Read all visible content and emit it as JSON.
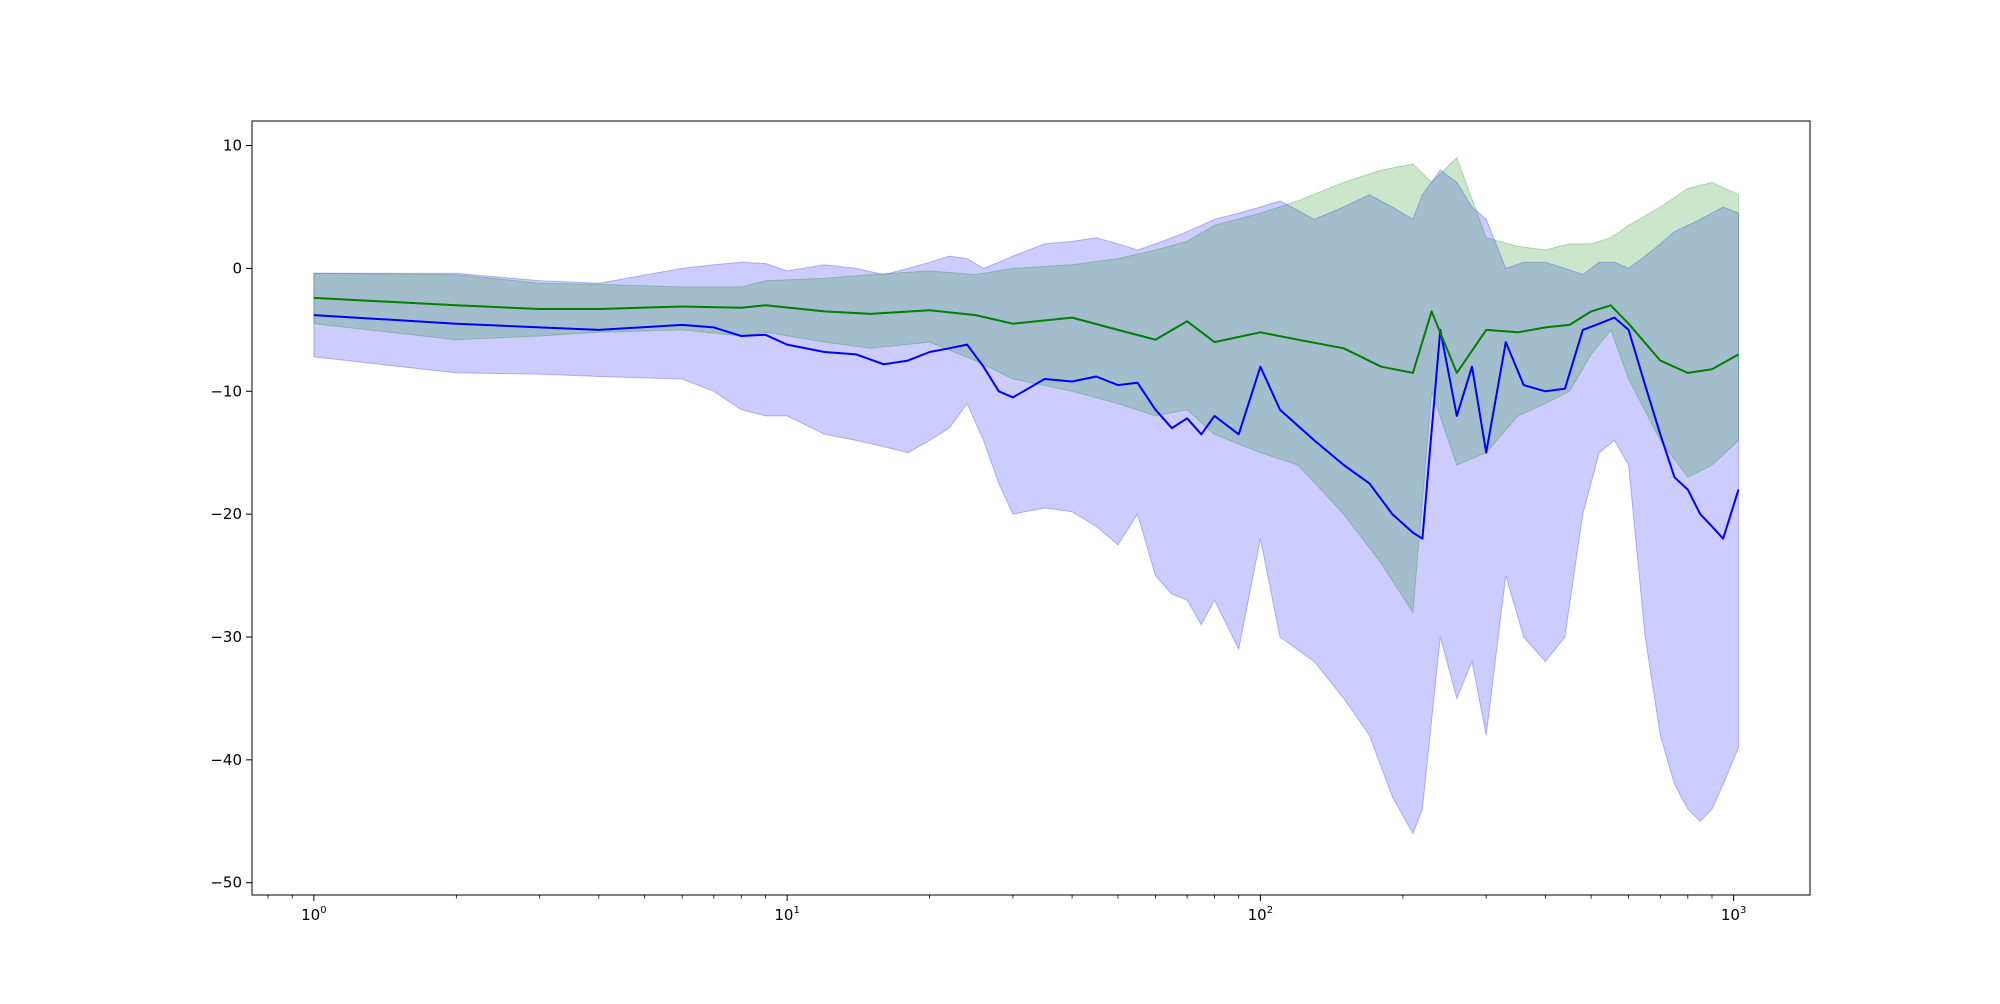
{
  "chart_data": {
    "type": "line",
    "title": "",
    "xlabel": "",
    "ylabel": "",
    "x_scale": "log",
    "xlim": [
      0.74,
      1450
    ],
    "ylim": [
      -51,
      12
    ],
    "grid": false,
    "x_ticks": [
      {
        "value": 1,
        "base": "10",
        "exp": "0"
      },
      {
        "value": 10,
        "base": "10",
        "exp": "1"
      },
      {
        "value": 100,
        "base": "10",
        "exp": "2"
      },
      {
        "value": 1000,
        "base": "10",
        "exp": "3"
      }
    ],
    "y_ticks": [
      {
        "value": 10,
        "label": "10"
      },
      {
        "value": 0,
        "label": "0"
      },
      {
        "value": -10,
        "label": "−10"
      },
      {
        "value": -20,
        "label": "−20"
      },
      {
        "value": -30,
        "label": "−30"
      },
      {
        "value": -40,
        "label": "−40"
      },
      {
        "value": -50,
        "label": "−50"
      }
    ],
    "series": [
      {
        "color": "#008000",
        "band_color": "#008000",
        "x": [
          1,
          2,
          3,
          4,
          6,
          8,
          9,
          12,
          15,
          20,
          25,
          30,
          40,
          50,
          60,
          70,
          80,
          100,
          120,
          150,
          180,
          210,
          230,
          260,
          300,
          350,
          400,
          450,
          500,
          550,
          600,
          700,
          800,
          900,
          1024
        ],
        "values": [
          -2.4,
          -3.0,
          -3.3,
          -3.3,
          -3.1,
          -3.2,
          -3.0,
          -3.5,
          -3.7,
          -3.4,
          -3.8,
          -4.5,
          -4.0,
          -5.0,
          -5.8,
          -4.3,
          -6.0,
          -5.2,
          -5.8,
          -6.5,
          -8.0,
          -8.5,
          -3.5,
          -8.5,
          -5.0,
          -5.2,
          -4.8,
          -4.6,
          -3.5,
          -3.0,
          -4.5,
          -7.5,
          -8.5,
          -8.2,
          -7.0
        ],
        "band_lower": [
          -0.8,
          -1.0,
          -1.2,
          -1.5,
          -1.7,
          -1.8,
          -1.5,
          -1.8,
          -2.0,
          -1.5,
          -0.8,
          -0.5,
          -0.2,
          0.5,
          0.8,
          1.0,
          2.5,
          4.0,
          5.0,
          6.0,
          7.0,
          7.5,
          5.0,
          6.5,
          2.0,
          1.5,
          1.5,
          1.8,
          1.5,
          2.0,
          3.0,
          4.5,
          5.5,
          6.5,
          5.5
        ],
        "band_upper": [
          -0.4,
          -0.5,
          -1.2,
          -1.3,
          -1.5,
          -1.5,
          -1.0,
          -0.8,
          -0.5,
          -0.2,
          -0.5,
          0.0,
          0.3,
          0.8,
          1.5,
          2.2,
          3.5,
          4.5,
          5.5,
          7.0,
          8.0,
          8.5,
          7.0,
          9.0,
          2.5,
          1.8,
          1.5,
          2.0,
          2.0,
          2.5,
          3.5,
          5.0,
          6.5,
          7.0,
          6.0
        ],
        "band_bottom": [
          -4.5,
          -5.8,
          -5.5,
          -5.2,
          -5.0,
          -5.5,
          -5.2,
          -6.0,
          -6.5,
          -6.0,
          -7.5,
          -9.0,
          -10.0,
          -11.0,
          -12.0,
          -11.5,
          -13.5,
          -15.0,
          -16.0,
          -20.0,
          -24.0,
          -28.0,
          -10.0,
          -16.0,
          -15.0,
          -12.0,
          -11.0,
          -10.0,
          -7.0,
          -5.0,
          -9.0,
          -14.0,
          -17.0,
          -16.0,
          -14.0
        ]
      },
      {
        "color": "#0000ff",
        "band_color": "#0000ff",
        "x": [
          1,
          2,
          3,
          4,
          6,
          7,
          8,
          9,
          10,
          12,
          14,
          16,
          18,
          20,
          22,
          24,
          26,
          28,
          30,
          35,
          40,
          45,
          50,
          55,
          60,
          65,
          70,
          75,
          80,
          90,
          100,
          110,
          130,
          150,
          170,
          190,
          210,
          220,
          240,
          260,
          280,
          300,
          330,
          360,
          400,
          440,
          480,
          520,
          560,
          600,
          650,
          700,
          750,
          800,
          850,
          900,
          950,
          1024
        ],
        "values": [
          -3.8,
          -4.5,
          -4.8,
          -5.0,
          -4.6,
          -4.8,
          -5.5,
          -5.4,
          -6.2,
          -6.8,
          -7.0,
          -7.8,
          -7.5,
          -6.8,
          -6.5,
          -6.2,
          -8.0,
          -10.0,
          -10.5,
          -9.0,
          -9.2,
          -8.8,
          -9.5,
          -9.3,
          -11.5,
          -13.0,
          -12.2,
          -13.5,
          -12.0,
          -13.5,
          -8.0,
          -11.5,
          -14.0,
          -16.0,
          -17.5,
          -20.0,
          -21.5,
          -22.0,
          -5.0,
          -12.0,
          -8.0,
          -15.0,
          -6.0,
          -9.5,
          -10.0,
          -9.8,
          -5.0,
          -4.5,
          -4.0,
          -5.0,
          -9.5,
          -13.5,
          -17.0,
          -18.0,
          -20.0,
          -21.0,
          -22.0,
          -18.0
        ],
        "band_lower": [
          -7.2,
          -8.5,
          -8.6,
          -8.8,
          -9.0,
          -10.0,
          -11.5,
          -12.0,
          -12.0,
          -13.5,
          -14.0,
          -14.5,
          -15.0,
          -14.0,
          -13.0,
          -11.0,
          -14.0,
          -17.5,
          -20.0,
          -19.5,
          -19.8,
          -21.0,
          -22.5,
          -20.0,
          -25.0,
          -26.5,
          -27.0,
          -29.0,
          -27.0,
          -31.0,
          -22.0,
          -30.0,
          -32.0,
          -35.0,
          -38.0,
          -43.0,
          -46.0,
          -44.0,
          -30.0,
          -35.0,
          -32.0,
          -38.0,
          -25.0,
          -30.0,
          -32.0,
          -30.0,
          -20.0,
          -15.0,
          -14.0,
          -16.0,
          -30.0,
          -38.0,
          -42.0,
          -44.0,
          -45.0,
          -44.0,
          -42.0,
          -39.0
        ],
        "band_upper": [
          -0.4,
          -0.4,
          -1.0,
          -1.2,
          0.0,
          0.3,
          0.5,
          0.4,
          -0.2,
          0.3,
          0.0,
          -0.5,
          0.0,
          0.5,
          1.0,
          0.8,
          0.0,
          0.5,
          1.0,
          2.0,
          2.2,
          2.5,
          2.0,
          1.5,
          2.0,
          2.5,
          3.0,
          3.5,
          4.0,
          4.5,
          5.0,
          5.5,
          4.0,
          5.0,
          6.0,
          5.0,
          4.0,
          6.0,
          8.0,
          7.0,
          5.0,
          4.0,
          0.0,
          0.5,
          0.5,
          0.0,
          -0.5,
          0.5,
          0.5,
          0.0,
          1.0,
          2.0,
          3.0,
          3.5,
          4.0,
          4.5,
          5.0,
          4.5
        ]
      }
    ]
  }
}
